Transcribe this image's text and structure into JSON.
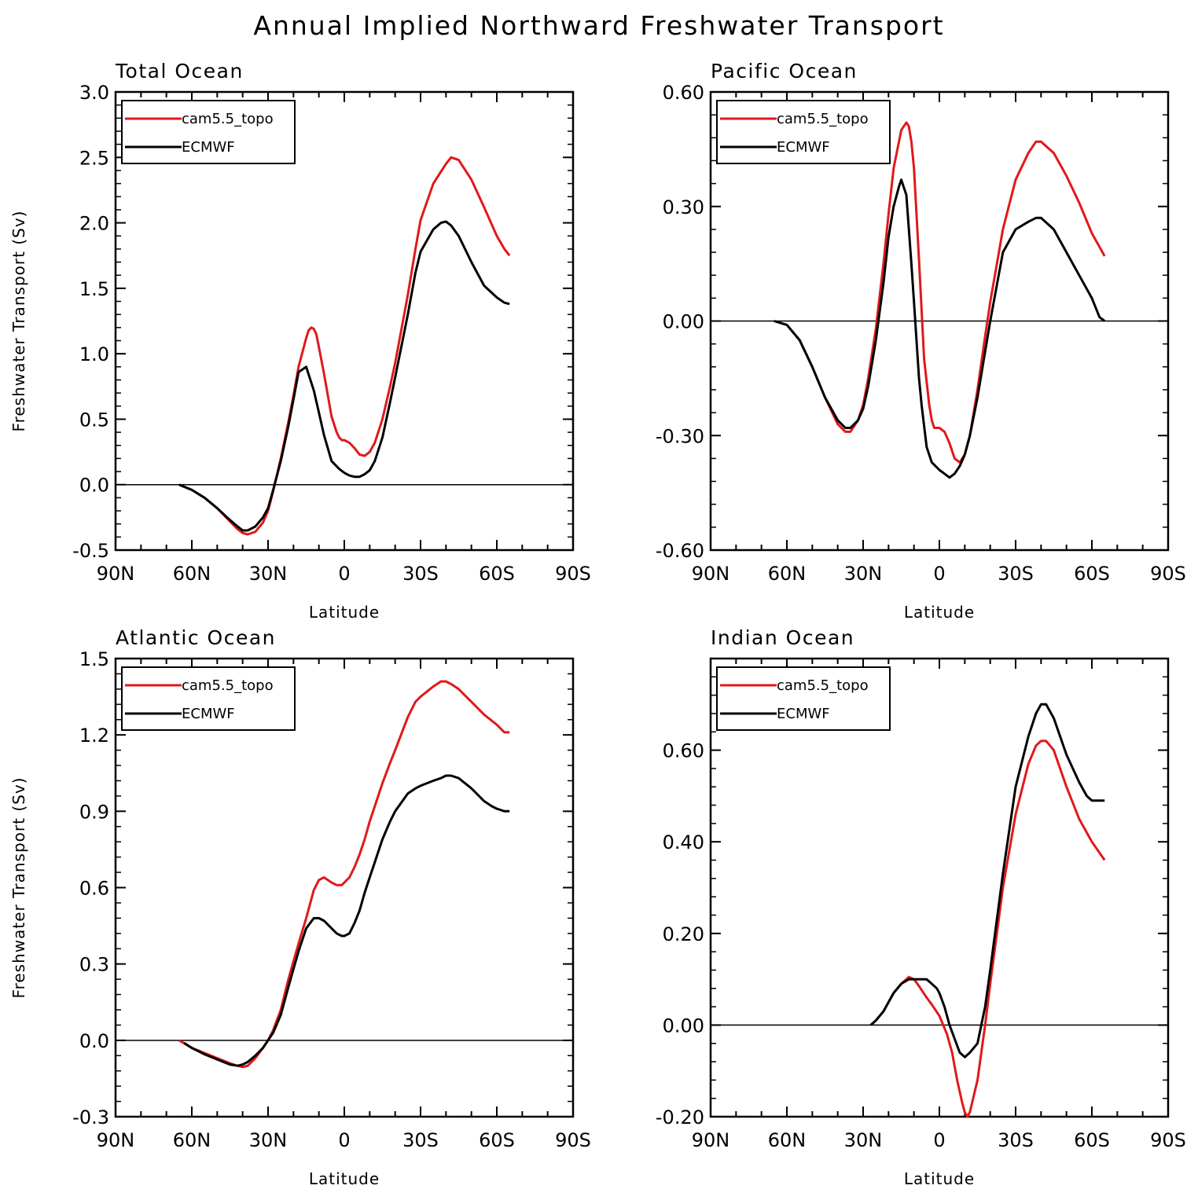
{
  "title": "Annual Implied Northward Freshwater Transport",
  "colors": {
    "cam": "#e0191b",
    "ecmwf": "#000000"
  },
  "chart_data": [
    {
      "type": "line",
      "title": "Total Ocean",
      "xlabel": "Latitude",
      "ylabel": "Freshwater Transport (Sv)",
      "x_ticks": [
        {
          "value": 90,
          "label": "90N"
        },
        {
          "value": 60,
          "label": "60N"
        },
        {
          "value": 30,
          "label": "30N"
        },
        {
          "value": 0,
          "label": "0"
        },
        {
          "value": -30,
          "label": "30S"
        },
        {
          "value": -60,
          "label": "60S"
        },
        {
          "value": -90,
          "label": "90S"
        }
      ],
      "xlim": [
        90,
        -90
      ],
      "ylim": [
        -0.5,
        3.0
      ],
      "y_ticks": [
        "-0.5",
        "0.0",
        "0.5",
        "1.0",
        "1.5",
        "2.0",
        "2.5",
        "3.0"
      ],
      "legend": "top-left",
      "series": [
        {
          "name": "cam5.5_topo",
          "color": "#e0191b",
          "x": [
            65,
            60,
            55,
            50,
            45,
            42,
            40,
            38,
            35,
            32,
            30,
            28,
            25,
            22,
            20,
            18,
            15,
            14,
            13,
            12,
            11,
            10,
            8,
            5,
            3,
            2,
            1,
            0,
            -2,
            -4,
            -6,
            -8,
            -10,
            -12,
            -15,
            -18,
            -20,
            -25,
            -28,
            -30,
            -35,
            -40,
            -42,
            -45,
            -50,
            -55,
            -60,
            -63,
            -65
          ],
          "y": [
            0.0,
            -0.04,
            -0.1,
            -0.18,
            -0.28,
            -0.34,
            -0.37,
            -0.38,
            -0.36,
            -0.29,
            -0.2,
            -0.05,
            0.2,
            0.48,
            0.68,
            0.9,
            1.12,
            1.18,
            1.2,
            1.19,
            1.15,
            1.05,
            0.85,
            0.52,
            0.4,
            0.36,
            0.34,
            0.34,
            0.32,
            0.28,
            0.23,
            0.22,
            0.25,
            0.32,
            0.5,
            0.75,
            0.93,
            1.45,
            1.8,
            2.02,
            2.3,
            2.45,
            2.5,
            2.48,
            2.33,
            2.12,
            1.9,
            1.8,
            1.75
          ]
        },
        {
          "name": "ECMWF",
          "color": "#000000",
          "x": [
            65,
            60,
            55,
            50,
            45,
            42,
            40,
            38,
            35,
            32,
            30,
            28,
            25,
            22,
            20,
            18,
            15,
            12,
            10,
            8,
            5,
            2,
            0,
            -2,
            -4,
            -6,
            -8,
            -10,
            -12,
            -15,
            -18,
            -20,
            -25,
            -28,
            -30,
            -35,
            -38,
            -40,
            -42,
            -45,
            -50,
            -55,
            -60,
            -63,
            -65
          ],
          "y": [
            0.0,
            -0.04,
            -0.1,
            -0.18,
            -0.27,
            -0.32,
            -0.35,
            -0.35,
            -0.32,
            -0.25,
            -0.18,
            -0.04,
            0.18,
            0.45,
            0.65,
            0.86,
            0.9,
            0.72,
            0.55,
            0.38,
            0.18,
            0.12,
            0.09,
            0.07,
            0.06,
            0.06,
            0.08,
            0.11,
            0.18,
            0.36,
            0.63,
            0.82,
            1.3,
            1.62,
            1.78,
            1.95,
            2.0,
            2.01,
            1.98,
            1.9,
            1.7,
            1.52,
            1.43,
            1.39,
            1.38
          ]
        }
      ]
    },
    {
      "type": "line",
      "title": "Pacific Ocean",
      "xlabel": "Latitude",
      "ylabel": "",
      "x_ticks": [
        {
          "value": 90,
          "label": "90N"
        },
        {
          "value": 60,
          "label": "60N"
        },
        {
          "value": 30,
          "label": "30N"
        },
        {
          "value": 0,
          "label": "0"
        },
        {
          "value": -30,
          "label": "30S"
        },
        {
          "value": -60,
          "label": "60S"
        },
        {
          "value": -90,
          "label": "90S"
        }
      ],
      "xlim": [
        90,
        -90
      ],
      "ylim": [
        -0.6,
        0.6
      ],
      "y_ticks": [
        "-0.60",
        "-0.30",
        "0.00",
        "0.30",
        "0.60"
      ],
      "legend": "top-left",
      "series": [
        {
          "name": "cam5.5_topo",
          "color": "#e0191b",
          "x": [
            65,
            60,
            55,
            50,
            45,
            40,
            37,
            35,
            32,
            30,
            28,
            25,
            22,
            20,
            18,
            15,
            13,
            12,
            11,
            10,
            8,
            6,
            4,
            3,
            2,
            1,
            0,
            -2,
            -4,
            -6,
            -8,
            -10,
            -12,
            -15,
            -18,
            -20,
            -25,
            -30,
            -35,
            -38,
            -40,
            -45,
            -50,
            -55,
            -60,
            -65
          ],
          "y": [
            0.0,
            -0.01,
            -0.05,
            -0.12,
            -0.2,
            -0.27,
            -0.29,
            -0.29,
            -0.26,
            -0.22,
            -0.15,
            -0.02,
            0.15,
            0.28,
            0.4,
            0.5,
            0.52,
            0.51,
            0.47,
            0.4,
            0.16,
            -0.1,
            -0.22,
            -0.26,
            -0.28,
            -0.28,
            -0.28,
            -0.29,
            -0.32,
            -0.36,
            -0.37,
            -0.35,
            -0.3,
            -0.18,
            -0.04,
            0.05,
            0.24,
            0.37,
            0.44,
            0.47,
            0.47,
            0.44,
            0.38,
            0.31,
            0.23,
            0.17
          ]
        },
        {
          "name": "ECMWF",
          "color": "#000000",
          "x": [
            65,
            60,
            55,
            50,
            45,
            40,
            37,
            35,
            32,
            30,
            28,
            25,
            22,
            20,
            18,
            16,
            15,
            13,
            11,
            10,
            9,
            8,
            7,
            5,
            3,
            0,
            -2,
            -4,
            -6,
            -8,
            -10,
            -12,
            -15,
            -18,
            -20,
            -25,
            -30,
            -35,
            -38,
            -40,
            -45,
            -50,
            -55,
            -60,
            -63,
            -65
          ],
          "y": [
            0.0,
            -0.01,
            -0.05,
            -0.12,
            -0.2,
            -0.26,
            -0.28,
            -0.28,
            -0.26,
            -0.23,
            -0.17,
            -0.05,
            0.1,
            0.22,
            0.3,
            0.35,
            0.37,
            0.33,
            0.15,
            0.05,
            -0.05,
            -0.15,
            -0.22,
            -0.33,
            -0.37,
            -0.39,
            -0.4,
            -0.41,
            -0.4,
            -0.38,
            -0.35,
            -0.3,
            -0.2,
            -0.08,
            0.0,
            0.18,
            0.24,
            0.26,
            0.27,
            0.27,
            0.24,
            0.18,
            0.12,
            0.06,
            0.01,
            0.0
          ]
        }
      ]
    },
    {
      "type": "line",
      "title": "Atlantic Ocean",
      "xlabel": "Latitude",
      "ylabel": "Freshwater Transport (Sv)",
      "x_ticks": [
        {
          "value": 90,
          "label": "90N"
        },
        {
          "value": 60,
          "label": "60N"
        },
        {
          "value": 30,
          "label": "30N"
        },
        {
          "value": 0,
          "label": "0"
        },
        {
          "value": -30,
          "label": "30S"
        },
        {
          "value": -60,
          "label": "60S"
        },
        {
          "value": -90,
          "label": "90S"
        }
      ],
      "xlim": [
        90,
        -90
      ],
      "ylim": [
        -0.3,
        1.5
      ],
      "y_ticks": [
        "-0.3",
        "0.0",
        "0.3",
        "0.6",
        "0.9",
        "1.2",
        "1.5"
      ],
      "legend": "top-left",
      "series": [
        {
          "name": "cam5.5_topo",
          "color": "#e0191b",
          "x": [
            65,
            60,
            55,
            50,
            45,
            42,
            40,
            38,
            35,
            32,
            30,
            28,
            25,
            22,
            20,
            18,
            15,
            12,
            10,
            8,
            5,
            3,
            1,
            0,
            -2,
            -4,
            -6,
            -8,
            -10,
            -12,
            -15,
            -18,
            -20,
            -25,
            -28,
            -30,
            -35,
            -38,
            -40,
            -42,
            -45,
            -50,
            -55,
            -60,
            -63,
            -65
          ],
          "y": [
            0.0,
            -0.03,
            -0.05,
            -0.07,
            -0.09,
            -0.1,
            -0.105,
            -0.1,
            -0.07,
            -0.03,
            0.0,
            0.04,
            0.12,
            0.24,
            0.31,
            0.38,
            0.48,
            0.59,
            0.63,
            0.64,
            0.62,
            0.61,
            0.61,
            0.62,
            0.64,
            0.68,
            0.73,
            0.79,
            0.86,
            0.92,
            1.01,
            1.09,
            1.14,
            1.27,
            1.33,
            1.35,
            1.39,
            1.41,
            1.41,
            1.4,
            1.38,
            1.33,
            1.28,
            1.24,
            1.21,
            1.21
          ]
        },
        {
          "name": "ECMWF",
          "color": "#000000",
          "x": [
            63,
            60,
            55,
            50,
            45,
            42,
            40,
            38,
            35,
            32,
            30,
            28,
            25,
            22,
            20,
            18,
            15,
            12,
            10,
            8,
            5,
            3,
            1,
            0,
            -2,
            -4,
            -6,
            -8,
            -10,
            -12,
            -15,
            -18,
            -20,
            -25,
            -28,
            -30,
            -35,
            -38,
            -40,
            -42,
            -45,
            -50,
            -55,
            -58,
            -60,
            -63,
            -65
          ],
          "y": [
            -0.01,
            -0.03,
            -0.055,
            -0.075,
            -0.095,
            -0.1,
            -0.095,
            -0.085,
            -0.06,
            -0.03,
            0.0,
            0.03,
            0.1,
            0.21,
            0.28,
            0.35,
            0.44,
            0.48,
            0.48,
            0.47,
            0.44,
            0.42,
            0.41,
            0.41,
            0.42,
            0.46,
            0.51,
            0.58,
            0.64,
            0.7,
            0.79,
            0.86,
            0.9,
            0.97,
            0.99,
            1.0,
            1.02,
            1.03,
            1.04,
            1.04,
            1.03,
            0.99,
            0.94,
            0.92,
            0.91,
            0.9,
            0.9
          ]
        }
      ]
    },
    {
      "type": "line",
      "title": "Indian Ocean",
      "xlabel": "Latitude",
      "ylabel": "",
      "x_ticks": [
        {
          "value": 90,
          "label": "90N"
        },
        {
          "value": 60,
          "label": "60N"
        },
        {
          "value": 30,
          "label": "30N"
        },
        {
          "value": 0,
          "label": "0"
        },
        {
          "value": -30,
          "label": "30S"
        },
        {
          "value": -60,
          "label": "60S"
        },
        {
          "value": -90,
          "label": "90S"
        }
      ],
      "xlim": [
        90,
        -90
      ],
      "ylim": [
        -0.2,
        0.8
      ],
      "y_ticks": [
        "-0.20",
        "0.00",
        "0.20",
        "0.40",
        "0.60"
      ],
      "legend": "top-left",
      "series": [
        {
          "name": "cam5.5_topo",
          "color": "#e0191b",
          "x": [
            27,
            25,
            22,
            20,
            18,
            15,
            12,
            10,
            8,
            5,
            3,
            0,
            -3,
            -5,
            -7,
            -9,
            -10,
            -11,
            -12,
            -15,
            -18,
            -20,
            -25,
            -30,
            -35,
            -38,
            -40,
            -42,
            -45,
            -50,
            -55,
            -60,
            -65
          ],
          "y": [
            0.0,
            0.01,
            0.03,
            0.05,
            0.07,
            0.09,
            0.105,
            0.1,
            0.085,
            0.06,
            0.045,
            0.02,
            -0.02,
            -0.06,
            -0.12,
            -0.17,
            -0.19,
            -0.2,
            -0.19,
            -0.12,
            0.0,
            0.09,
            0.3,
            0.46,
            0.57,
            0.61,
            0.62,
            0.62,
            0.6,
            0.52,
            0.45,
            0.4,
            0.36
          ]
        },
        {
          "name": "ECMWF",
          "color": "#000000",
          "x": [
            27,
            25,
            22,
            20,
            18,
            15,
            12,
            10,
            8,
            6,
            5,
            3,
            1,
            0,
            -2,
            -4,
            -6,
            -8,
            -10,
            -12,
            -15,
            -18,
            -20,
            -25,
            -30,
            -35,
            -38,
            -40,
            -42,
            -45,
            -50,
            -55,
            -58,
            -60,
            -63,
            -65
          ],
          "y": [
            0.0,
            0.01,
            0.03,
            0.05,
            0.07,
            0.09,
            0.1,
            0.1,
            0.1,
            0.1,
            0.1,
            0.09,
            0.08,
            0.07,
            0.04,
            0.0,
            -0.03,
            -0.06,
            -0.07,
            -0.06,
            -0.04,
            0.04,
            0.12,
            0.33,
            0.52,
            0.63,
            0.68,
            0.7,
            0.7,
            0.67,
            0.59,
            0.53,
            0.5,
            0.49,
            0.49,
            0.49
          ]
        }
      ]
    }
  ]
}
